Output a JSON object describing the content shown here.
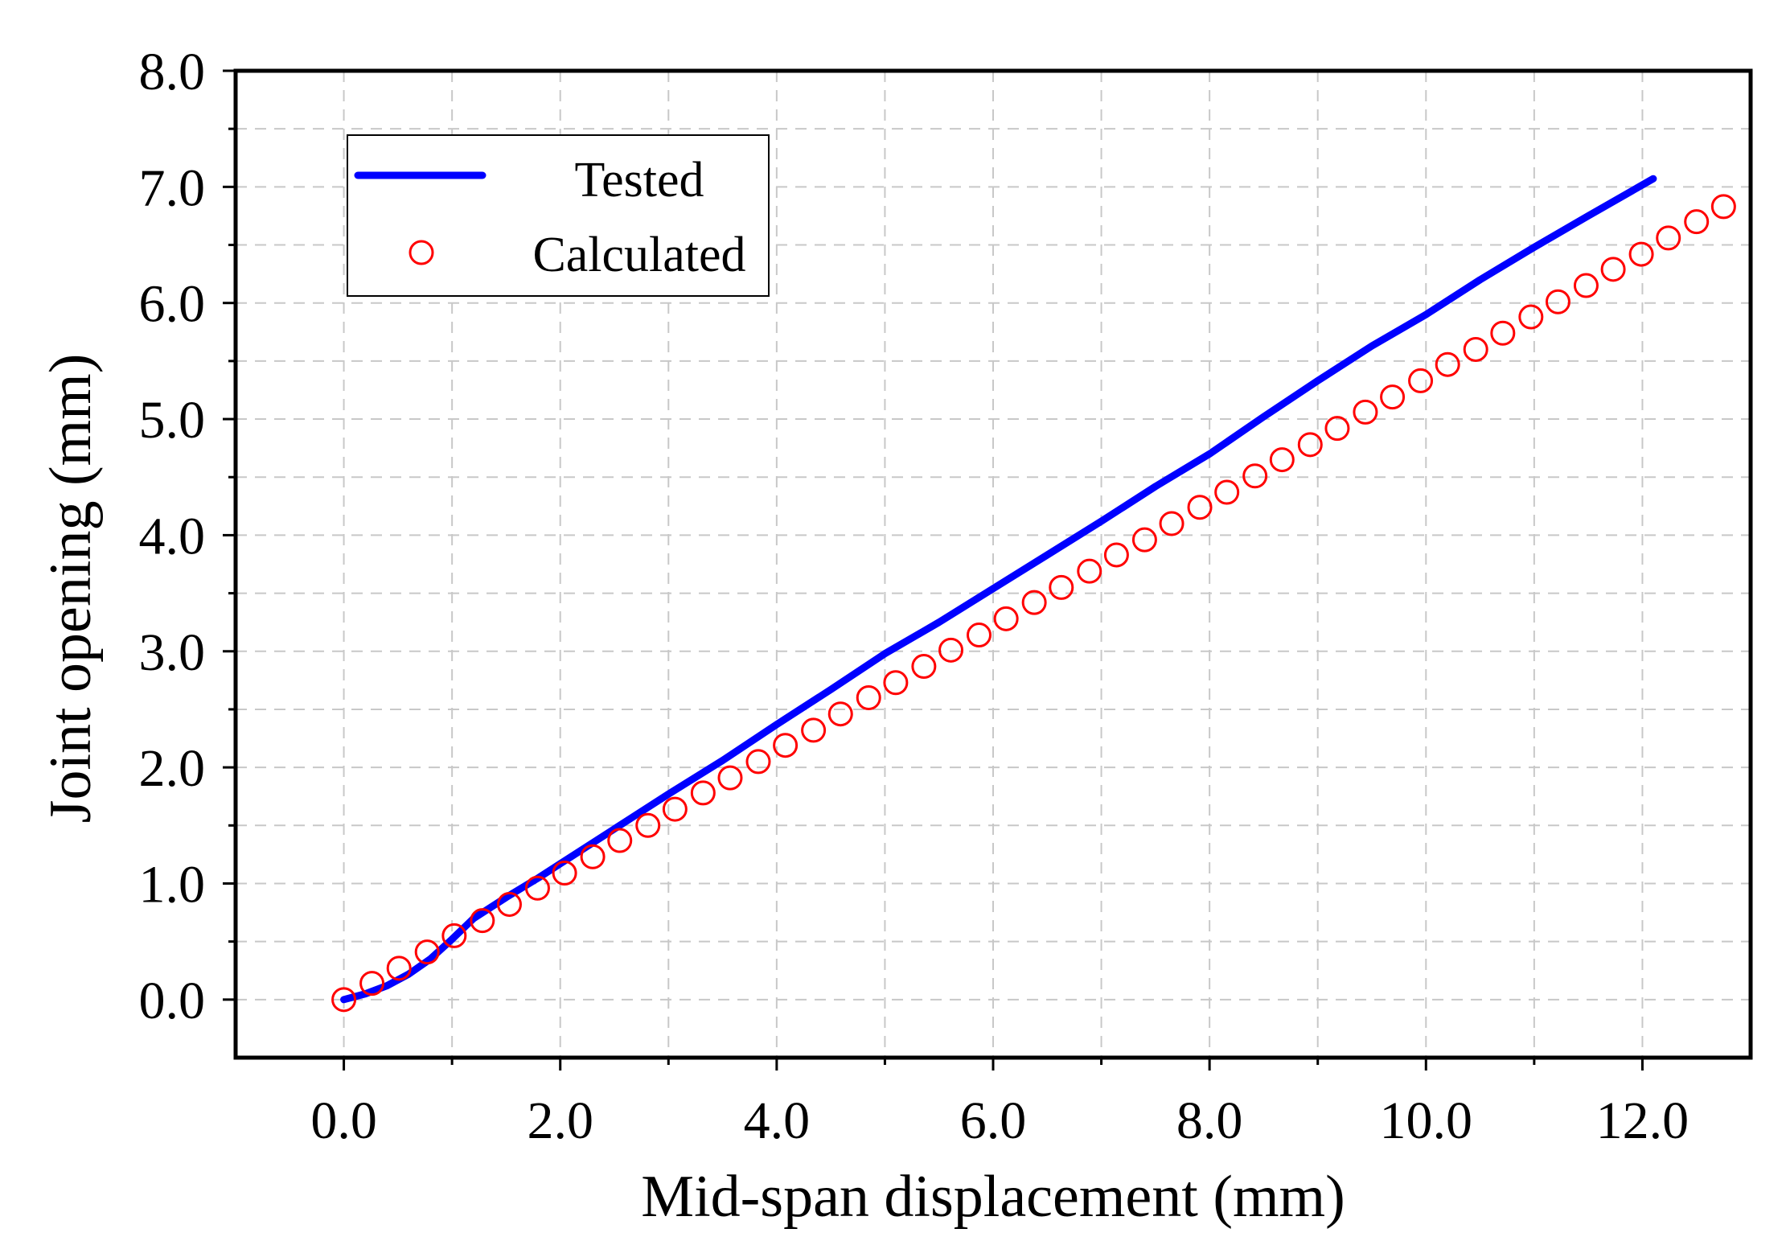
{
  "chart_data": {
    "type": "scatter",
    "xlabel": "Mid-span displacement (mm)",
    "ylabel": "Joint opening (mm)",
    "xlim": [
      -1.0,
      13.0
    ],
    "ylim": [
      -0.5,
      8.0
    ],
    "xticks": [
      0.0,
      2.0,
      4.0,
      6.0,
      8.0,
      10.0,
      12.0
    ],
    "xtick_labels": [
      "0.0",
      "2.0",
      "4.0",
      "6.0",
      "8.0",
      "10.0",
      "12.0"
    ],
    "yticks": [
      0.0,
      1.0,
      2.0,
      3.0,
      4.0,
      5.0,
      6.0,
      7.0,
      8.0
    ],
    "ytick_labels": [
      "0.0",
      "1.0",
      "2.0",
      "3.0",
      "4.0",
      "5.0",
      "6.0",
      "7.0",
      "8.0"
    ],
    "grid": true,
    "legend_position": "top-left",
    "series": [
      {
        "name": "Tested",
        "style": "line",
        "color": "#0000ff",
        "x": [
          0.0,
          0.2,
          0.4,
          0.6,
          0.8,
          1.0,
          1.2,
          1.5,
          1.8,
          2.0,
          2.5,
          3.0,
          3.5,
          4.0,
          4.5,
          5.0,
          5.5,
          6.0,
          6.5,
          7.0,
          7.5,
          8.0,
          8.5,
          9.0,
          9.5,
          10.0,
          10.5,
          11.0,
          11.5,
          12.1
        ],
        "y": [
          0.0,
          0.05,
          0.12,
          0.22,
          0.35,
          0.52,
          0.7,
          0.88,
          1.05,
          1.17,
          1.47,
          1.77,
          2.06,
          2.37,
          2.67,
          2.98,
          3.25,
          3.54,
          3.83,
          4.12,
          4.42,
          4.7,
          5.02,
          5.33,
          5.63,
          5.9,
          6.2,
          6.48,
          6.75,
          7.07
        ]
      },
      {
        "name": "Calculated",
        "style": "markers",
        "marker": "open-circle",
        "color": "#ff0000",
        "x": [
          0.0,
          0.26,
          0.51,
          0.77,
          1.02,
          1.28,
          1.53,
          1.79,
          2.04,
          2.3,
          2.55,
          2.81,
          3.06,
          3.32,
          3.57,
          3.83,
          4.08,
          4.34,
          4.59,
          4.85,
          5.1,
          5.36,
          5.61,
          5.87,
          6.12,
          6.38,
          6.63,
          6.89,
          7.14,
          7.4,
          7.65,
          7.91,
          8.16,
          8.42,
          8.67,
          8.93,
          9.18,
          9.44,
          9.69,
          9.95,
          10.2,
          10.46,
          10.71,
          10.97,
          11.22,
          11.48,
          11.73,
          11.99,
          12.24,
          12.5,
          12.75
        ],
        "y": [
          0.0,
          0.14,
          0.27,
          0.41,
          0.55,
          0.68,
          0.82,
          0.96,
          1.09,
          1.23,
          1.37,
          1.5,
          1.64,
          1.78,
          1.91,
          2.05,
          2.19,
          2.32,
          2.46,
          2.6,
          2.73,
          2.87,
          3.01,
          3.14,
          3.28,
          3.42,
          3.55,
          3.69,
          3.83,
          3.96,
          4.1,
          4.24,
          4.37,
          4.51,
          4.65,
          4.78,
          4.92,
          5.06,
          5.19,
          5.33,
          5.47,
          5.6,
          5.74,
          5.88,
          6.01,
          6.15,
          6.29,
          6.42,
          6.56,
          6.7,
          6.83
        ]
      }
    ]
  }
}
